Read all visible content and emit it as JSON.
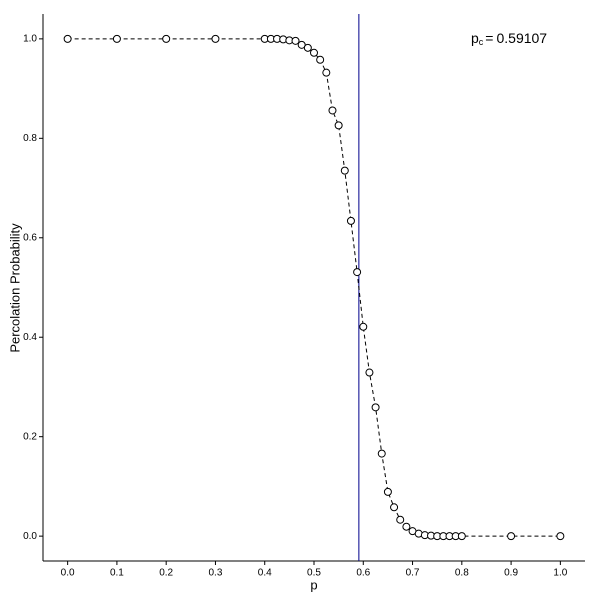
{
  "chart_data": {
    "type": "line",
    "x_label": "p",
    "y_label": "Percolation Probability",
    "xlim": [
      -0.05,
      1.05
    ],
    "ylim": [
      -0.05,
      1.05
    ],
    "xticks": [
      {
        "value": 0,
        "label": "0.0"
      },
      {
        "value": 0.1,
        "label": "0.1"
      },
      {
        "value": 0.2,
        "label": "0.2"
      },
      {
        "value": 0.3,
        "label": "0.3"
      },
      {
        "value": 0.4,
        "label": "0.4"
      },
      {
        "value": 0.5,
        "label": "0.5"
      },
      {
        "value": 0.6,
        "label": "0.6"
      },
      {
        "value": 0.7,
        "label": "0.7"
      },
      {
        "value": 0.8,
        "label": "0.8"
      },
      {
        "value": 0.9,
        "label": "0.9"
      },
      {
        "value": 1,
        "label": "1.0"
      }
    ],
    "yticks": [
      {
        "value": 0,
        "label": "0.0"
      },
      {
        "value": 0.2,
        "label": "0.2"
      },
      {
        "value": 0.4,
        "label": "0.4"
      },
      {
        "value": 0.6,
        "label": "0.6"
      },
      {
        "value": 0.8,
        "label": "0.8"
      },
      {
        "value": 1,
        "label": "1.0"
      }
    ],
    "x": [
      0,
      0.1,
      0.2,
      0.3,
      0.4,
      0.4125,
      0.425,
      0.4375,
      0.45,
      0.4625,
      0.475,
      0.4875,
      0.5,
      0.5125,
      0.525,
      0.5375,
      0.55,
      0.5625,
      0.575,
      0.5875,
      0.6,
      0.6125,
      0.625,
      0.6375,
      0.65,
      0.6625,
      0.675,
      0.6875,
      0.7,
      0.7125,
      0.725,
      0.7375,
      0.75,
      0.7625,
      0.775,
      0.7875,
      0.8,
      0.9,
      1
    ],
    "series": [
      {
        "color": "#000000",
        "values": [
          1,
          1,
          1,
          1,
          1,
          1,
          1,
          0.999,
          0.997,
          0.996,
          0.988,
          0.982,
          0.972,
          0.958,
          0.932,
          0.856,
          0.826,
          0.735,
          0.634,
          0.531,
          0.421,
          0.329,
          0.259,
          0.166,
          0.089,
          0.058,
          0.033,
          0.019,
          0.01,
          0.005,
          0.002,
          0.001,
          0,
          0,
          0,
          0,
          0,
          0,
          0
        ]
      }
    ],
    "threshold": {
      "symbol": "p",
      "subscript": "c",
      "relation": "=",
      "value": 0.59107,
      "color": "#00008b"
    }
  }
}
